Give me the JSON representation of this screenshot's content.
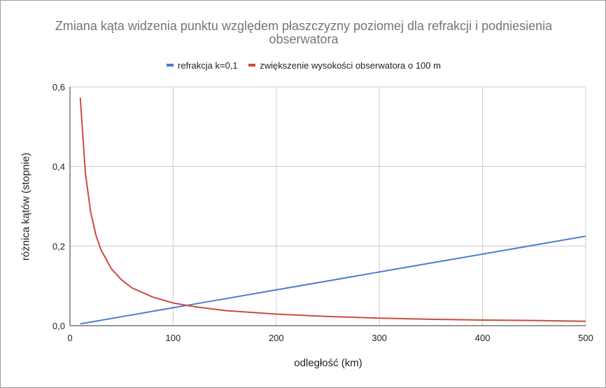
{
  "chart_data": {
    "type": "line",
    "title": "Zmiana kąta widzenia punktu względem płaszczyzny poziomej dla refrakcji i podniesienia obserwatora",
    "title_line1": "Zmiana kąta widzenia punktu względem płaszczyzny poziomej dla refrakcji i podniesienia",
    "title_line2": "obserwatora",
    "xlabel": "odległość (km)",
    "ylabel": "różnica kątów (stopnie)",
    "xlim": [
      0,
      500
    ],
    "ylim": [
      0,
      0.6
    ],
    "x_ticks": [
      "0",
      "100",
      "200",
      "300",
      "400",
      "500"
    ],
    "y_ticks": [
      "0,0",
      "0,2",
      "0,4",
      "0,6"
    ],
    "grid": true,
    "legend_position": "top",
    "x": [
      10,
      15,
      20,
      25,
      30,
      40,
      50,
      60,
      80,
      100,
      120,
      150,
      200,
      250,
      300,
      350,
      400,
      450,
      500
    ],
    "series": [
      {
        "name": "refrakcja k=0,1",
        "color": "#4a7bd0",
        "values": [
          0.0045,
          0.0067,
          0.009,
          0.0112,
          0.0135,
          0.018,
          0.0225,
          0.027,
          0.036,
          0.045,
          0.054,
          0.0674,
          0.0899,
          0.1124,
          0.1349,
          0.1574,
          0.1798,
          0.2023,
          0.2248
        ]
      },
      {
        "name": "zwiększenie wysokości obserwatora o 100 m",
        "color": "#cc4b3c",
        "values": [
          0.573,
          0.382,
          0.286,
          0.229,
          0.191,
          0.143,
          0.115,
          0.095,
          0.072,
          0.057,
          0.048,
          0.038,
          0.029,
          0.023,
          0.019,
          0.016,
          0.014,
          0.013,
          0.011
        ]
      }
    ]
  }
}
